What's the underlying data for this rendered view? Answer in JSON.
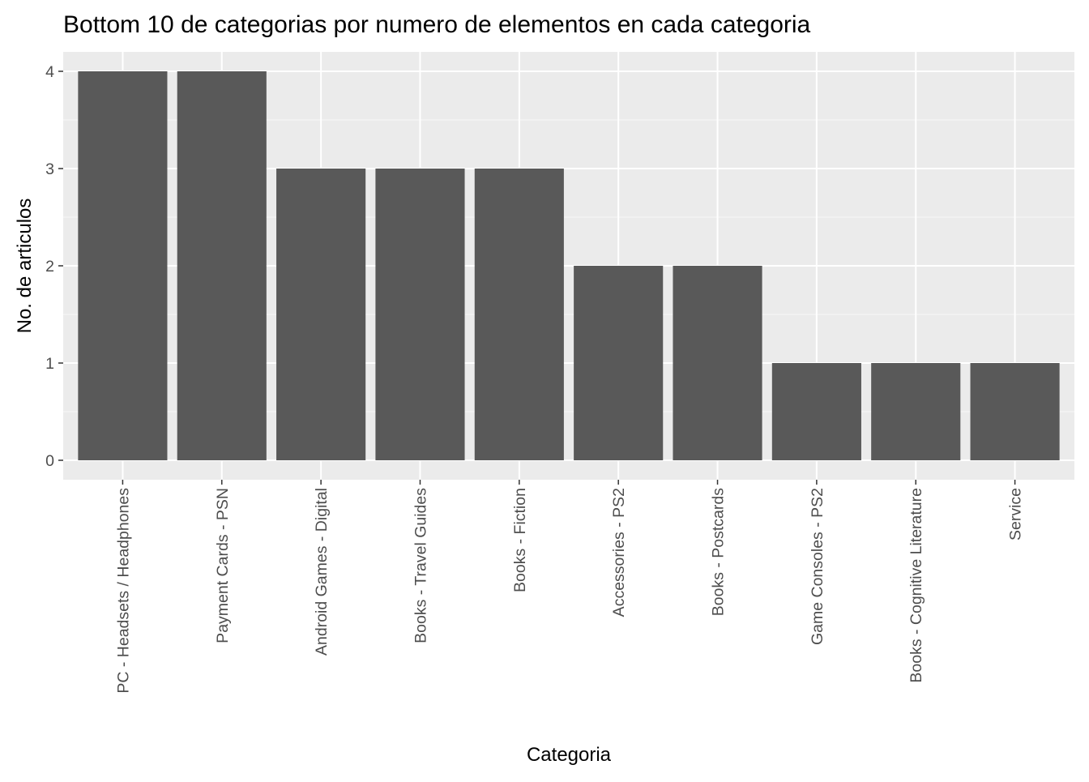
{
  "chart_data": {
    "type": "bar",
    "title": "Bottom 10 de categorias por numero de elementos en cada categoria",
    "xlabel": "Categoria",
    "ylabel": "No. de articulos",
    "categories": [
      "PC - Headsets / Headphones",
      "Payment Cards - PSN",
      "Android Games - Digital",
      "Books - Travel Guides",
      "Books - Fiction",
      "Accessories - PS2",
      "Books - Postcards",
      "Game Consoles - PS2",
      "Books - Cognitive Literature",
      "Service"
    ],
    "values": [
      4,
      4,
      3,
      3,
      3,
      2,
      2,
      1,
      1,
      1
    ],
    "ylim": [
      -0.2,
      4.2
    ],
    "yticks": [
      0,
      1,
      2,
      3,
      4
    ],
    "grid": true,
    "legend": "none",
    "colors": {
      "bar": "#595959",
      "panel": "#ebebeb",
      "grid_major": "#ffffff",
      "grid_minor": "#f7f7f7",
      "tick": "#333333"
    }
  }
}
